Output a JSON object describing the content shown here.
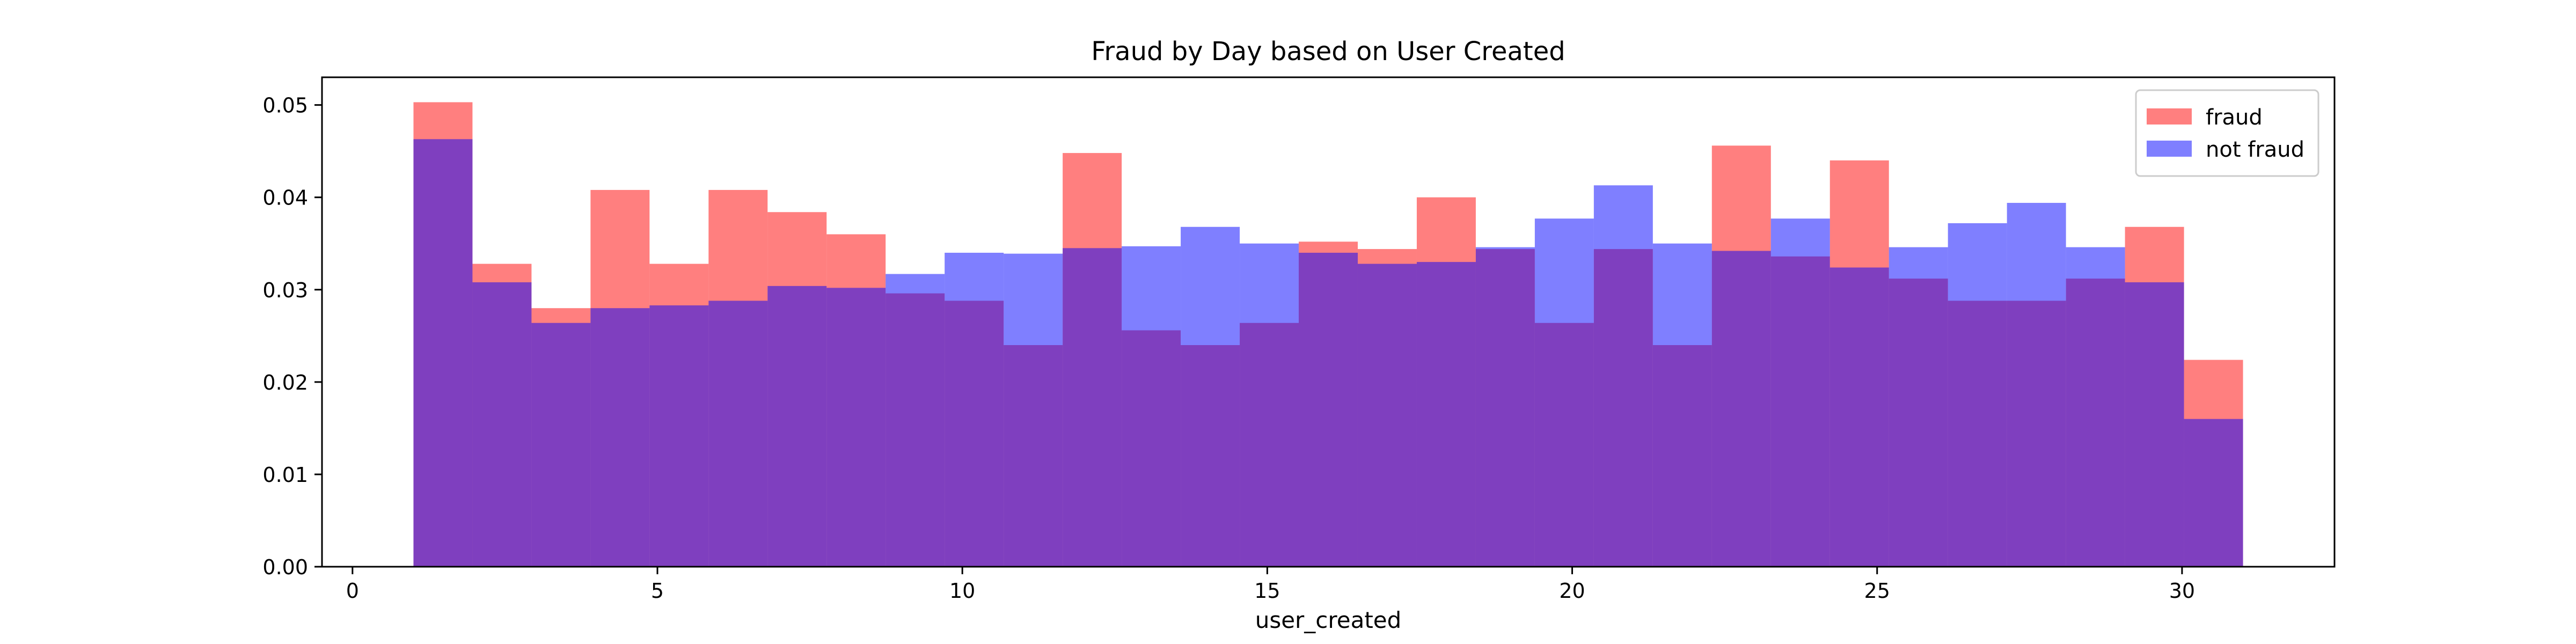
{
  "chart_data": {
    "type": "bar",
    "title": "Fraud by Day based on User Created",
    "xlabel": "user_created",
    "ylabel": "",
    "xlim": [
      -0.5,
      32.5
    ],
    "ylim": [
      0,
      0.053
    ],
    "x_ticks": [
      0,
      5,
      10,
      15,
      20,
      25,
      30
    ],
    "y_ticks": [
      0.0,
      0.01,
      0.02,
      0.03,
      0.04,
      0.05
    ],
    "x_tick_labels": [
      "0",
      "5",
      "10",
      "15",
      "20",
      "25",
      "30"
    ],
    "y_tick_labels": [
      "0.00",
      "0.01",
      "0.02",
      "0.03",
      "0.04",
      "0.05"
    ],
    "grid": false,
    "legend_position": "top-right",
    "bin_edges": [
      1,
      1.9677,
      2.9355,
      3.9032,
      4.871,
      5.8387,
      6.8065,
      7.7742,
      8.7419,
      9.7097,
      10.6774,
      11.6452,
      12.6129,
      13.5806,
      14.5484,
      15.5161,
      16.4839,
      17.4516,
      18.4194,
      19.3871,
      20.3548,
      21.3226,
      22.2903,
      23.2581,
      24.2258,
      25.1935,
      26.1613,
      27.129,
      28.0968,
      29.0645,
      30.0323,
      31
    ],
    "series": [
      {
        "name": "fraud",
        "color": "#ff0000",
        "alpha": 0.5,
        "values": [
          0.0503,
          0.0328,
          0.028,
          0.0408,
          0.0328,
          0.0408,
          0.0384,
          0.036,
          0.0296,
          0.0288,
          0.024,
          0.0448,
          0.0256,
          0.024,
          0.0264,
          0.0352,
          0.0344,
          0.04,
          0.0344,
          0.0264,
          0.0344,
          0.024,
          0.0456,
          0.0336,
          0.044,
          0.0312,
          0.0288,
          0.0288,
          0.0312,
          0.0368,
          0.0224
        ]
      },
      {
        "name": "not fraud",
        "color": "#0000ff",
        "alpha": 0.5,
        "values": [
          0.0463,
          0.0308,
          0.0264,
          0.028,
          0.0283,
          0.0288,
          0.0304,
          0.0302,
          0.0317,
          0.034,
          0.0339,
          0.0345,
          0.0347,
          0.0368,
          0.035,
          0.034,
          0.0328,
          0.033,
          0.0346,
          0.0377,
          0.0413,
          0.035,
          0.0342,
          0.0377,
          0.0324,
          0.0346,
          0.0372,
          0.0394,
          0.0346,
          0.0308,
          0.016
        ]
      }
    ]
  }
}
